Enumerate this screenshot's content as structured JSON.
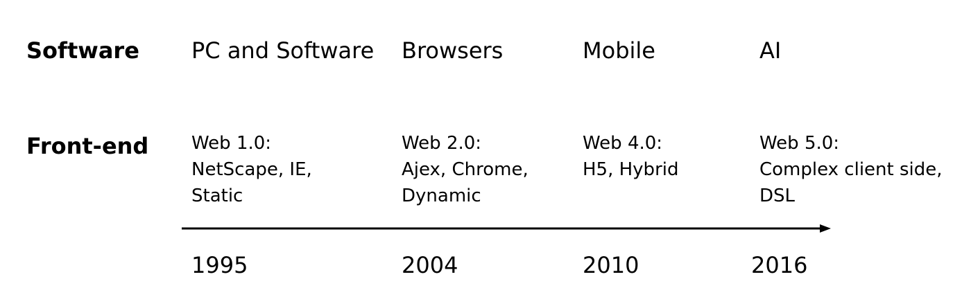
{
  "rows": {
    "software_label": "Software",
    "frontend_label": "Front-end"
  },
  "columns": [
    {
      "era": "PC and Software",
      "frontend": [
        "Web 1.0:",
        "NetScape, IE,",
        "Static"
      ],
      "year": "1995"
    },
    {
      "era": "Browsers",
      "frontend": [
        "Web 2.0:",
        "Ajex, Chrome,",
        "Dynamic"
      ],
      "year": "2004"
    },
    {
      "era": "Mobile",
      "frontend": [
        "Web 4.0:",
        "H5, Hybrid"
      ],
      "year": "2010"
    },
    {
      "era": "AI",
      "frontend": [
        "Web 5.0:",
        "Complex client side,",
        "DSL"
      ],
      "year": "2016"
    }
  ],
  "colors": {
    "text": "#000000",
    "arrow": "#000000",
    "background": "#ffffff"
  }
}
